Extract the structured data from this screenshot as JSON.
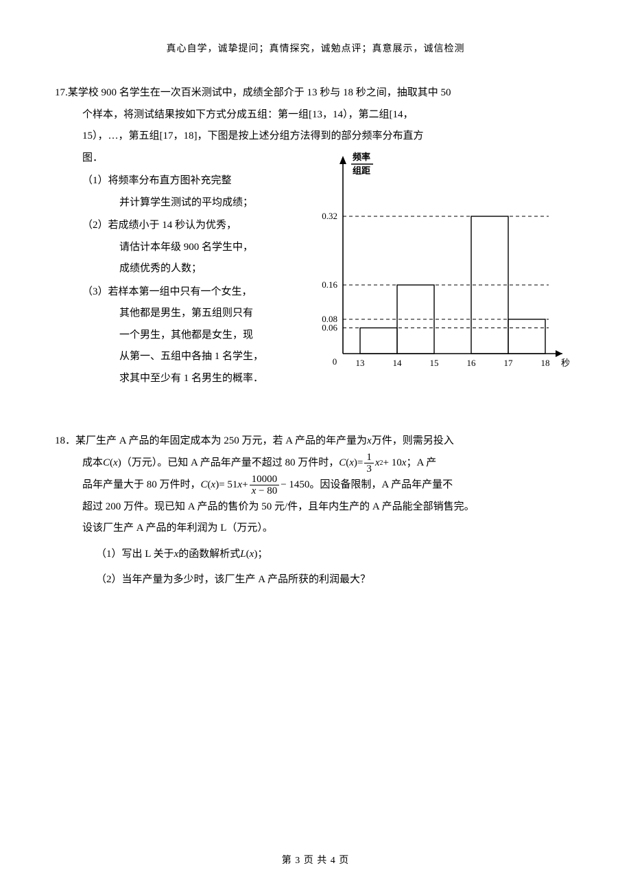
{
  "header": "真心自学，诚挚提问；真情探究，诚勉点评；真意展示，诚信检测",
  "q17": {
    "num": "17.",
    "intro_l1": "某学校 900 名学生在一次百米测试中，成绩全部介于 13 秒与 18 秒之间，抽取其中 50",
    "intro_l2": "个样本，将测试结果按如下方式分成五组：第一组[13，14），第二组[14，",
    "intro_l3": "15），…，第五组[17，18]，下图是按上述分组方法得到的部分频率分布直方",
    "intro_l4": "图．",
    "s1a": "（1）将频率分布直方图补充完整",
    "s1b": "并计算学生测试的平均成绩；",
    "s2a": "（2）若成绩小于 14 秒认为优秀，",
    "s2b": "请估计本年级 900 名学生中，",
    "s2c": "成绩优秀的人数；",
    "s3a": "（3）若样本第一组中只有一个女生，",
    "s3b": "其他都是男生，第五组则只有",
    "s3c": "一个男生，其他都是女生，现",
    "s3d": "从第一、五组中各抽 1 名学生，",
    "s3e": "求其中至少有 1 名男生的概率．"
  },
  "chart": {
    "y_title1": "频率",
    "y_title2": "组距",
    "y_ticks": [
      {
        "v": 0.06,
        "label": "0.06"
      },
      {
        "v": 0.08,
        "label": "0.08"
      },
      {
        "v": 0.16,
        "label": "0.16"
      },
      {
        "v": 0.32,
        "label": "0.32"
      }
    ],
    "x_origin": "0",
    "x_ticks": [
      "13",
      "14",
      "15",
      "16",
      "17",
      "18"
    ],
    "x_label": "秒",
    "bars": [
      {
        "x0": 13,
        "x1": 14,
        "h": 0.06
      },
      {
        "x0": 14,
        "x1": 15,
        "h": 0.16
      },
      {
        "x0": 16,
        "x1": 17,
        "h": 0.32
      },
      {
        "x0": 17,
        "x1": 18,
        "h": 0.08
      }
    ],
    "axis_color": "#000000",
    "dash_color": "#000000",
    "bg": "#ffffff",
    "y_max_plot": 0.4,
    "x_min": 13,
    "x_max": 18
  },
  "q18": {
    "num": "18．",
    "l1a": "某厂生产 A 产品的年固定成本为 250 万元，若 A 产品的年产量为",
    "l1b": "万件，则需另投入",
    "l2a": "成本",
    "l2b": "（万元）。已知 A 产品年产量不超过 80 万件时，",
    "l2c": "；A 产",
    "l3a": "品年产量大于 80 万件时，",
    "l3b": "。因设备限制，A 产品年产量不",
    "l4": "超过 200 万件。现已知 A 产品的售价为 50 元/件，且年内生产的 A 产品能全部销售完。",
    "l5": "设该厂生产 A 产品的年利润为 L（万元）。",
    "s1a": "（1）写出 L 关于",
    "s1b": " 的函数解析式",
    "s1c": "；",
    "s2": "（2）当年产量为多少时，该厂生产 A 产品所获的利润最大？",
    "fx_C": "C",
    "fx_L": "L",
    "fx_x": "x",
    "f1_eq_a": " = ",
    "f1_num": "1",
    "f1_den": "3",
    "f1_tail": " + 10",
    "f2_eq_a": " = 51",
    "f2_plus": " + ",
    "f2_num": "10000",
    "f2_den_a": " − 80",
    "f2_tail": " − 1450"
  },
  "footer": "第 3 页 共 4 页"
}
